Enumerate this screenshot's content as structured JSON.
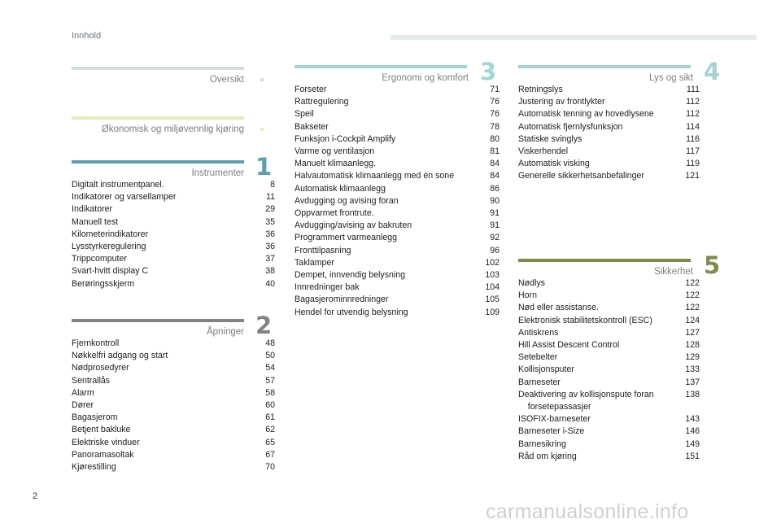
{
  "header": {
    "title": "Innhold"
  },
  "footer": {
    "page_number": "2",
    "watermark": "carmanualsonline.info"
  },
  "colors": {
    "overview": "#d3dcdc",
    "eco": "#e3ebb8",
    "instruments": "#5b9fb1",
    "openings": "#838383",
    "ergonomics": "#9fd6d6",
    "lights": "#a6d2d2",
    "safety": "#7d8c48"
  },
  "sections": {
    "overview": {
      "title": "Oversikt"
    },
    "eco": {
      "title": "Økonomisk og miljøvennlig kjøring"
    },
    "instruments": {
      "title": "Instrumenter",
      "number": "1",
      "entries": [
        {
          "label": "Digitalt instrumentpanel.",
          "page": "8"
        },
        {
          "label": "Indikatorer og varsellamper",
          "page": "11"
        },
        {
          "label": "Indikatorer",
          "page": "29"
        },
        {
          "label": "Manuell test",
          "page": "35"
        },
        {
          "label": "Kilometerindikatorer",
          "page": "36"
        },
        {
          "label": "Lysstyrkeregulering",
          "page": "36"
        },
        {
          "label": "Trippcomputer",
          "page": "37"
        },
        {
          "label": "Svart-hvitt display C",
          "page": "38"
        },
        {
          "label": "Berøringsskjerm",
          "page": "40"
        }
      ]
    },
    "openings": {
      "title": "Åpninger",
      "number": "2",
      "entries": [
        {
          "label": "Fjernkontroll",
          "page": "48"
        },
        {
          "label": "Nøkkelfri adgang og start",
          "page": "50"
        },
        {
          "label": "Nødprosedyrer",
          "page": "54"
        },
        {
          "label": "Sentrallås",
          "page": "57"
        },
        {
          "label": "Alarm",
          "page": "58"
        },
        {
          "label": "Dører",
          "page": "60"
        },
        {
          "label": "Bagasjerom",
          "page": "61"
        },
        {
          "label": "Betjent bakluke",
          "page": "62"
        },
        {
          "label": "Elektriske vinduer",
          "page": "65"
        },
        {
          "label": "Panoramasoltak",
          "page": "67"
        },
        {
          "label": "Kjørestilling",
          "page": "70"
        }
      ]
    },
    "ergonomics": {
      "title": "Ergonomi og komfort",
      "number": "3",
      "entries": [
        {
          "label": "Forseter",
          "page": "71"
        },
        {
          "label": "Rattregulering",
          "page": "76"
        },
        {
          "label": "Speil",
          "page": "76"
        },
        {
          "label": "Bakseter",
          "page": "78"
        },
        {
          "label": "Funksjon i-Cockpit Amplify",
          "page": "80"
        },
        {
          "label": "Varme og ventilasjon",
          "page": "81"
        },
        {
          "label": "Manuelt klimaanlegg.",
          "page": "84"
        },
        {
          "label": "Halvautomatisk klimaanlegg med én sone",
          "page": "84"
        },
        {
          "label": "Automatisk klimaanlegg",
          "page": "86"
        },
        {
          "label": "Avdugging og avising foran",
          "page": "90"
        },
        {
          "label": "Oppvarmet frontrute.",
          "page": "91"
        },
        {
          "label": "Avdugging/avising av bakruten",
          "page": "91"
        },
        {
          "label": "Programmert varmeanlegg",
          "page": "92"
        },
        {
          "label": "Fronttilpasning",
          "page": "96"
        },
        {
          "label": "Taklamper",
          "page": "102"
        },
        {
          "label": "Dempet, innvendig belysning",
          "page": "103"
        },
        {
          "label": "Innredninger bak",
          "page": "104"
        },
        {
          "label": "Bagasjerominnredninger",
          "page": "105"
        },
        {
          "label": "Hendel for utvendig belysning",
          "page": "109"
        }
      ]
    },
    "lights": {
      "title": "Lys og sikt",
      "number": "4",
      "entries": [
        {
          "label": "Retningslys",
          "page": "111"
        },
        {
          "label": "Justering av frontlykter",
          "page": "112"
        },
        {
          "label": "Automatisk tenning av hovedlysene",
          "page": "112"
        },
        {
          "label": "Automatisk fjernlysfunksjon",
          "page": "114"
        },
        {
          "label": "Statiske svinglys",
          "page": "116"
        },
        {
          "label": "Viskerhendel",
          "page": "117"
        },
        {
          "label": "Automatisk visking",
          "page": "119"
        },
        {
          "label": "Generelle sikkerhetsanbefalinger",
          "page": "121"
        }
      ]
    },
    "safety": {
      "title": "Sikkerhet",
      "number": "5",
      "entries": [
        {
          "label": "Nødlys",
          "page": "122"
        },
        {
          "label": "Horn",
          "page": "122"
        },
        {
          "label": "Nød eller assistanse.",
          "page": "122"
        },
        {
          "label": "Elektronisk stabilitetskontroll (ESC)",
          "page": "124"
        },
        {
          "label": "Antiskrens",
          "page": "127"
        },
        {
          "label": "Hill Assist Descent Control",
          "page": "128"
        },
        {
          "label": "Setebelter",
          "page": "129"
        },
        {
          "label": "Kollisjonsputer",
          "page": "133"
        },
        {
          "label": "Barneseter",
          "page": "137"
        },
        {
          "label": "Deaktivering av kollisjonspute foran\n    forsetepassasjer",
          "page": "138"
        },
        {
          "label": "ISOFIX-barneseter",
          "page": "143"
        },
        {
          "label": "Barneseter i-Size",
          "page": "146"
        },
        {
          "label": "Barnesikring",
          "page": "149"
        },
        {
          "label": "Råd om kjøring",
          "page": "151"
        }
      ]
    }
  }
}
